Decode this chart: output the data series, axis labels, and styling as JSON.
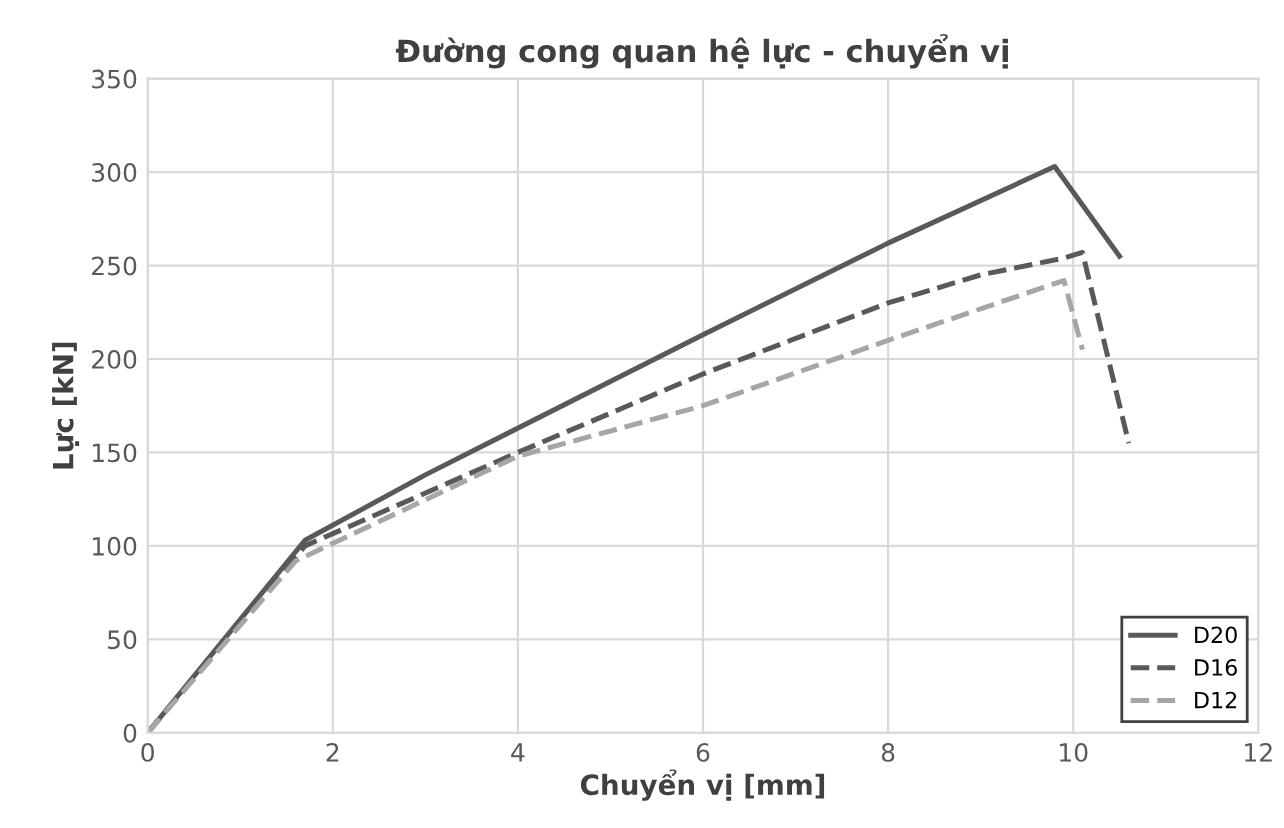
{
  "chart_data": {
    "type": "line",
    "title": "Đường cong quan hệ lực - chuyển vị",
    "xlabel": "Chuyển vị [mm]",
    "ylabel": "Lực [kN]",
    "xlim": [
      0,
      12
    ],
    "xticks": [
      0,
      2,
      4,
      6,
      8,
      10,
      12
    ],
    "ylim": [
      0,
      350
    ],
    "yticks": [
      0,
      50,
      100,
      150,
      200,
      250,
      300,
      350
    ],
    "grid": true,
    "legend": "bottom right",
    "marker": "none",
    "series": [
      {
        "name": "D20",
        "color": "#595959",
        "line_style": "solid",
        "x": [
          0,
          1.7,
          3,
          6,
          8,
          9.8,
          10.5
        ],
        "values": [
          0,
          103,
          138,
          213,
          262,
          303,
          255
        ]
      },
      {
        "name": "D16",
        "color": "#595959",
        "line_style": "dashed",
        "x": [
          0,
          1.7,
          4,
          6,
          8,
          9,
          9.9,
          10.1,
          10.6
        ],
        "values": [
          0,
          100,
          150,
          192,
          230,
          245,
          254,
          257,
          155
        ]
      },
      {
        "name": "D12",
        "color": "#a6a6a6",
        "line_style": "dashed",
        "x": [
          0,
          1.6,
          4,
          6,
          8,
          9.9,
          10.1
        ],
        "values": [
          0,
          92,
          148,
          175,
          210,
          242,
          205
        ]
      }
    ]
  }
}
